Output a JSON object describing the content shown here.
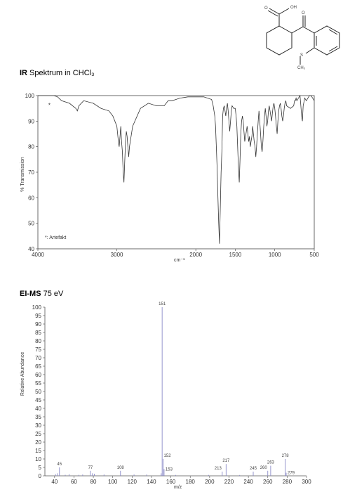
{
  "molecule": {
    "labels": [
      "OH",
      "O",
      "O",
      "S",
      "CH₃"
    ]
  },
  "chart_data": [
    {
      "type": "line",
      "title_bold": "IR",
      "title_rest": " Spektrum in CHCl₃",
      "xlabel": "cm⁻¹",
      "ylabel": "% Transmission",
      "xlim": [
        4000,
        500
      ],
      "ylim": [
        40,
        100
      ],
      "xticks": [
        4000,
        3000,
        2000,
        1500,
        1000,
        500
      ],
      "yticks": [
        40,
        50,
        60,
        70,
        80,
        90,
        100
      ],
      "annotation": "*: Artefakt",
      "artefact_marker": "*",
      "artefact_x": 3850,
      "x": [
        4000,
        3900,
        3800,
        3750,
        3700,
        3600,
        3520,
        3500,
        3480,
        3420,
        3300,
        3200,
        3100,
        3050,
        3000,
        2990,
        2980,
        2970,
        2960,
        2950,
        2940,
        2930,
        2920,
        2910,
        2900,
        2890,
        2880,
        2870,
        2860,
        2850,
        2840,
        2800,
        2700,
        2600,
        2500,
        2400,
        2350,
        2300,
        2200,
        2100,
        2000,
        1900,
        1800,
        1780,
        1760,
        1750,
        1740,
        1730,
        1720,
        1710,
        1700,
        1690,
        1680,
        1670,
        1660,
        1650,
        1640,
        1630,
        1620,
        1610,
        1600,
        1590,
        1580,
        1570,
        1560,
        1550,
        1540,
        1520,
        1500,
        1490,
        1480,
        1470,
        1460,
        1450,
        1440,
        1430,
        1420,
        1410,
        1400,
        1390,
        1380,
        1370,
        1360,
        1350,
        1340,
        1330,
        1320,
        1310,
        1300,
        1290,
        1280,
        1270,
        1260,
        1250,
        1240,
        1230,
        1220,
        1210,
        1200,
        1190,
        1180,
        1170,
        1160,
        1150,
        1140,
        1130,
        1120,
        1110,
        1100,
        1090,
        1080,
        1070,
        1060,
        1050,
        1040,
        1030,
        1020,
        1010,
        1000,
        990,
        980,
        970,
        960,
        950,
        940,
        930,
        920,
        910,
        900,
        890,
        880,
        870,
        860,
        850,
        800,
        760,
        750,
        740,
        730,
        720,
        700,
        680,
        670,
        660,
        650,
        640,
        620,
        600,
        580,
        560,
        540,
        520,
        500
      ],
      "y": [
        100,
        100,
        100,
        99.5,
        98,
        97,
        95,
        94,
        96,
        98,
        97,
        95,
        94,
        92,
        88,
        85,
        82,
        80,
        84,
        88,
        82,
        78,
        70,
        66,
        74,
        82,
        86,
        84,
        80,
        76,
        80,
        88,
        95,
        97,
        96,
        96,
        98,
        98,
        99,
        99.5,
        99.5,
        99.5,
        98.5,
        96,
        92,
        88,
        80,
        72,
        60,
        50,
        42,
        55,
        70,
        78,
        92,
        95,
        96,
        94,
        92,
        95,
        97,
        94,
        90,
        86,
        90,
        94,
        96,
        95,
        95,
        92,
        88,
        80,
        72,
        66,
        75,
        85,
        90,
        92,
        90,
        86,
        82,
        84,
        86,
        88,
        85,
        82,
        84,
        80,
        82,
        84,
        88,
        85,
        82,
        80,
        76,
        80,
        85,
        90,
        94,
        90,
        85,
        80,
        78,
        82,
        88,
        92,
        95,
        92,
        88,
        90,
        94,
        96,
        94,
        92,
        90,
        93,
        96,
        97,
        95,
        92,
        88,
        85,
        90,
        94,
        96,
        97,
        95,
        92,
        90,
        92,
        95,
        97,
        98,
        96,
        95,
        96,
        98,
        98,
        99,
        98,
        99,
        100,
        96,
        92,
        90,
        96,
        99,
        98,
        99,
        100,
        100,
        99,
        98
      ]
    },
    {
      "type": "bar",
      "title_bold": "EI-MS",
      "title_rest": " 75 eV",
      "xlabel": "m/z",
      "ylabel": "Relative Abundance",
      "xlim": [
        30,
        300
      ],
      "ylim": [
        0,
        100
      ],
      "xticks": [
        40,
        60,
        80,
        100,
        120,
        140,
        160,
        180,
        200,
        220,
        240,
        260,
        280,
        300
      ],
      "yticks": [
        0,
        5,
        10,
        15,
        20,
        25,
        30,
        35,
        40,
        45,
        50,
        55,
        60,
        65,
        70,
        75,
        80,
        85,
        90,
        95,
        100
      ],
      "peaks": [
        {
          "mz": 41,
          "ab": 1
        },
        {
          "mz": 43,
          "ab": 1.5
        },
        {
          "mz": 45,
          "ab": 5,
          "label": "45"
        },
        {
          "mz": 51,
          "ab": 0.6
        },
        {
          "mz": 55,
          "ab": 1
        },
        {
          "mz": 65,
          "ab": 0.6
        },
        {
          "mz": 69,
          "ab": 0.8
        },
        {
          "mz": 77,
          "ab": 3,
          "label": "77"
        },
        {
          "mz": 79,
          "ab": 1.5
        },
        {
          "mz": 81,
          "ab": 1.2
        },
        {
          "mz": 91,
          "ab": 0.8
        },
        {
          "mz": 108,
          "ab": 3,
          "label": "108"
        },
        {
          "mz": 122,
          "ab": 0.8
        },
        {
          "mz": 135,
          "ab": 0.8
        },
        {
          "mz": 150,
          "ab": 1.5
        },
        {
          "mz": 151,
          "ab": 100,
          "label": "151"
        },
        {
          "mz": 152,
          "ab": 10,
          "label": "152"
        },
        {
          "mz": 153,
          "ab": 4,
          "label": "153"
        },
        {
          "mz": 165,
          "ab": 0.5
        },
        {
          "mz": 199,
          "ab": 0.5
        },
        {
          "mz": 213,
          "ab": 2.5,
          "label": "213"
        },
        {
          "mz": 217,
          "ab": 7,
          "label": "217"
        },
        {
          "mz": 231,
          "ab": 0.5
        },
        {
          "mz": 245,
          "ab": 2.5,
          "label": "245"
        },
        {
          "mz": 260,
          "ab": 3,
          "label": "260"
        },
        {
          "mz": 263,
          "ab": 6,
          "label": "263"
        },
        {
          "mz": 278,
          "ab": 10,
          "label": "278"
        },
        {
          "mz": 279,
          "ab": 1.8,
          "label": "279"
        }
      ]
    }
  ]
}
